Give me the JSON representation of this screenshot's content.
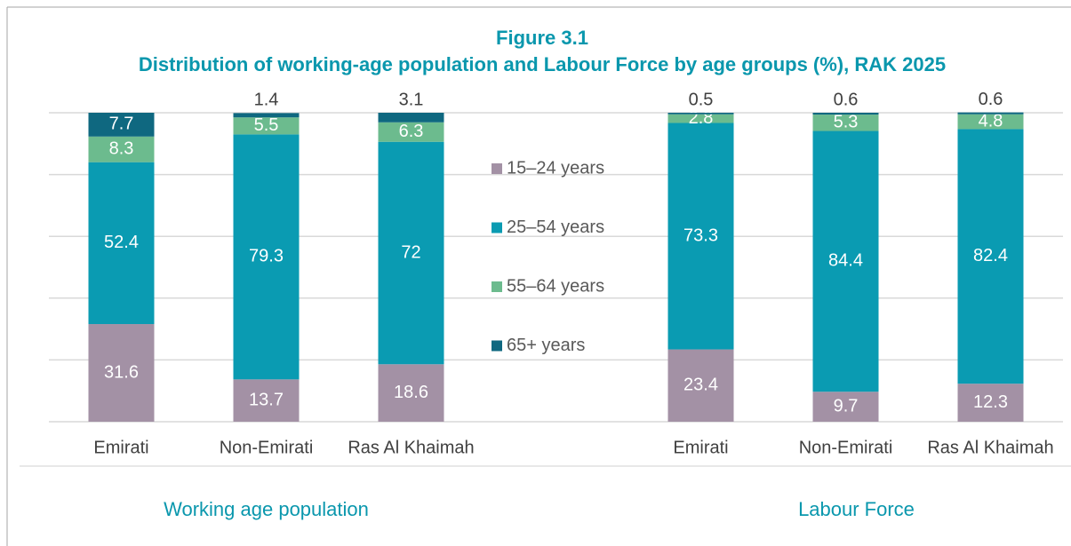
{
  "chart_data": {
    "type": "stacked_bar",
    "title": "Figure 3.1",
    "subtitle": "Distribution of working-age population and Labour Force by age groups (%), RAK 2025",
    "categories": [
      "Emirati",
      "Non-Emirati",
      "Ras Al Khaimah",
      null,
      "Emirati",
      "Non-Emirati",
      "Ras Al Khaimah"
    ],
    "series": [
      {
        "name": "15–24 years",
        "color": "#a391a5",
        "values": [
          31.6,
          13.7,
          18.6,
          null,
          23.4,
          9.7,
          12.3
        ]
      },
      {
        "name": "25–54 years",
        "color": "#0a9bb2",
        "values": [
          52.4,
          79.3,
          72,
          null,
          73.3,
          84.4,
          82.4
        ]
      },
      {
        "name": "55–64 years",
        "color": "#6cbb8e",
        "values": [
          8.3,
          5.5,
          6.3,
          null,
          2.8,
          5.3,
          4.8
        ]
      },
      {
        "name": "65+ years",
        "color": "#0f6880",
        "values": [
          7.7,
          1.4,
          3.1,
          null,
          0.5,
          0.6,
          0.6
        ]
      }
    ],
    "group_labels": [
      "Working age population",
      "Labour Force"
    ],
    "ylim": [
      0,
      100
    ],
    "yticks": [
      0,
      20,
      40,
      60,
      80,
      100
    ],
    "grid": true
  }
}
